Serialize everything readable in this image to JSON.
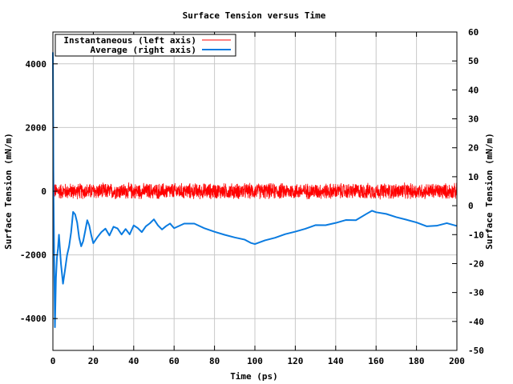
{
  "chart_data": {
    "type": "line",
    "title": "Surface Tension versus Time",
    "xlabel": "Time (ps)",
    "ylabel_left": "Surface Tension (mN/m)",
    "ylabel_right": "Surface Tension (mN/m)",
    "xlim": [
      0,
      200
    ],
    "ylim_left": [
      -5000,
      5000
    ],
    "ylim_right": [
      -50,
      60
    ],
    "x_ticks": [
      0,
      20,
      40,
      60,
      80,
      100,
      120,
      140,
      160,
      180,
      200
    ],
    "x_tick_labels": [
      "0",
      "20",
      "40",
      "60",
      "80",
      "100",
      "120",
      "140",
      "160",
      "180",
      "200"
    ],
    "y_left_ticks": [
      -4000,
      -2000,
      0,
      2000,
      4000
    ],
    "y_left_tick_labels": [
      "-4000",
      "-2000",
      "0",
      "2000",
      "4000"
    ],
    "y_right_ticks": [
      -50,
      -40,
      -30,
      -20,
      -10,
      0,
      10,
      20,
      30,
      40,
      50,
      60
    ],
    "y_right_tick_labels": [
      "-50",
      "-40",
      "-30",
      "-20",
      "-10",
      "0",
      "10",
      "20",
      "30",
      "40",
      "50",
      "60"
    ],
    "grid": true,
    "legend_position": "top-left",
    "series": [
      {
        "name": "Instantaneous (left axis)",
        "axis": "left",
        "color": "#ff0000",
        "style": "noise",
        "mean": 0,
        "amplitude": 280,
        "start_spike": 4500,
        "x": [
          0,
          200
        ]
      },
      {
        "name": "Average (right axis)",
        "axis": "right",
        "color": "#0a7be0",
        "x": [
          0,
          0.3,
          1,
          1.5,
          2,
          2.5,
          3,
          4,
          5,
          6,
          7,
          8,
          9,
          10,
          11,
          12,
          13,
          14,
          15,
          16,
          17,
          18,
          19,
          20,
          22,
          24,
          26,
          28,
          30,
          32,
          34,
          36,
          38,
          40,
          42,
          44,
          46,
          48,
          50,
          52,
          54,
          56,
          58,
          60,
          65,
          70,
          75,
          80,
          85,
          90,
          95,
          98,
          100,
          105,
          110,
          115,
          120,
          125,
          130,
          135,
          140,
          145,
          150,
          155,
          158,
          160,
          165,
          170,
          175,
          180,
          185,
          190,
          195,
          200
        ],
        "values": [
          53,
          5,
          -42,
          -25,
          -18,
          -15,
          -10,
          -20,
          -27,
          -22,
          -17,
          -14,
          -9,
          -2,
          -3,
          -6,
          -11,
          -14,
          -12,
          -9,
          -5,
          -7,
          -10,
          -13,
          -11,
          -9,
          -8,
          -10,
          -7,
          -8,
          -10,
          -8,
          -10,
          -7,
          -8,
          -9,
          -7,
          -6,
          -5,
          -7,
          -8,
          -7,
          -6,
          -8,
          -6,
          -6,
          -8,
          -9,
          -10,
          -11,
          -12,
          -13,
          -13,
          -12,
          -11,
          -10,
          -9,
          -8,
          -7,
          -7,
          -6,
          -5,
          -5,
          -3,
          -2,
          -2,
          -3,
          -4,
          -5,
          -6,
          -7,
          -7,
          -6,
          -7
        ]
      }
    ]
  }
}
